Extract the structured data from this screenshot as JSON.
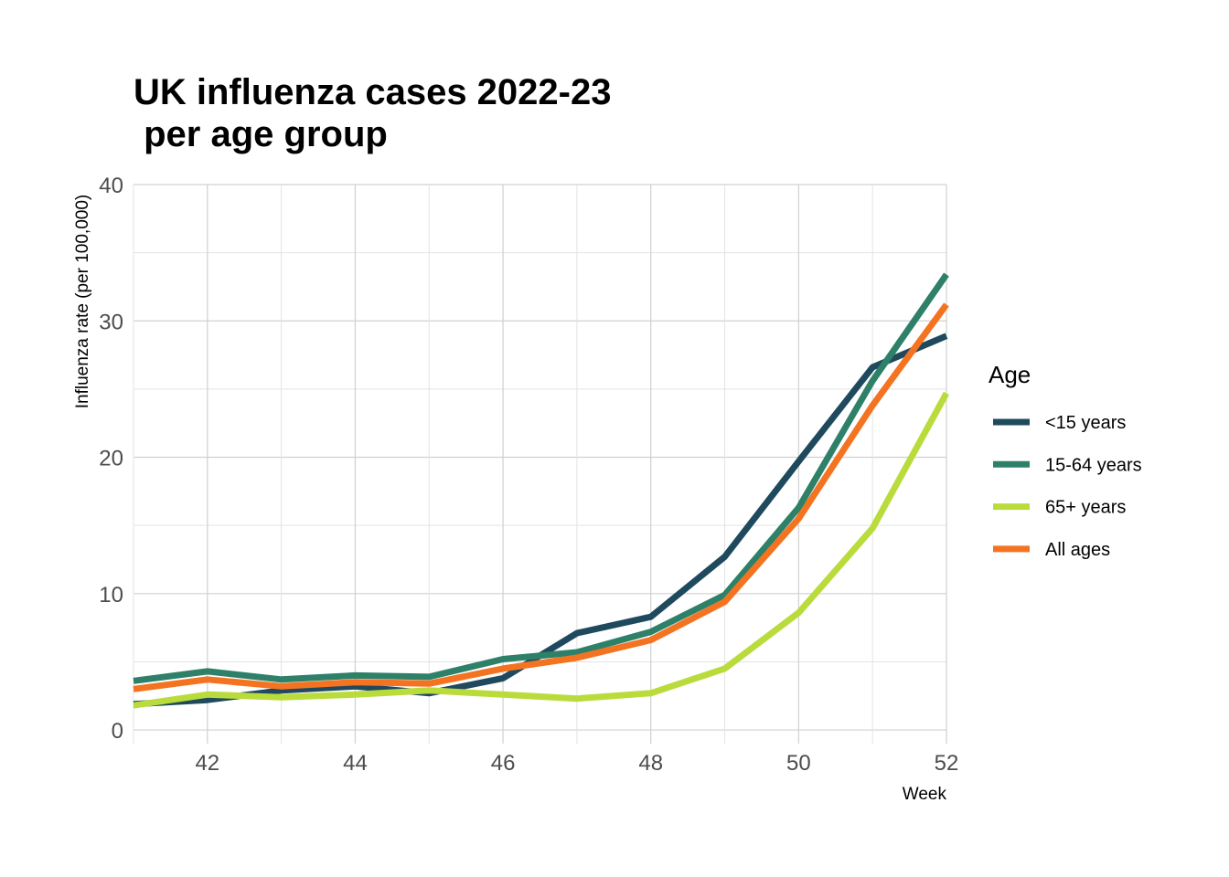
{
  "chart_data": {
    "type": "line",
    "title": "UK influenza cases 2022-23\n per age group",
    "xlabel": "Week",
    "ylabel": "Influenza rate (per 100,000)",
    "x": [
      41,
      42,
      43,
      44,
      45,
      46,
      47,
      48,
      49,
      50,
      51,
      52
    ],
    "xlim": [
      41,
      52
    ],
    "ylim": [
      -1,
      40
    ],
    "xticks": [
      42,
      44,
      46,
      48,
      50,
      52
    ],
    "yticks": [
      0,
      10,
      20,
      30,
      40
    ],
    "grid": true,
    "legend": {
      "title": "Age",
      "position": "right"
    },
    "series": [
      {
        "name": "<15 years",
        "color": "#1f4a5e",
        "values": [
          1.9,
          2.2,
          2.9,
          3.2,
          2.7,
          3.8,
          7.1,
          8.3,
          12.7,
          19.7,
          26.6,
          28.9
        ]
      },
      {
        "name": "15-64 years",
        "color": "#2e8068",
        "values": [
          3.6,
          4.3,
          3.7,
          4.0,
          3.9,
          5.2,
          5.7,
          7.2,
          9.9,
          16.3,
          25.6,
          33.4
        ]
      },
      {
        "name": "65+ years",
        "color": "#b9dc3c",
        "values": [
          1.8,
          2.6,
          2.4,
          2.6,
          2.9,
          2.6,
          2.3,
          2.7,
          4.5,
          8.6,
          14.8,
          24.7
        ]
      },
      {
        "name": "All ages",
        "color": "#f47321",
        "values": [
          3.0,
          3.7,
          3.2,
          3.5,
          3.4,
          4.5,
          5.3,
          6.6,
          9.4,
          15.5,
          23.8,
          31.2
        ]
      }
    ]
  }
}
